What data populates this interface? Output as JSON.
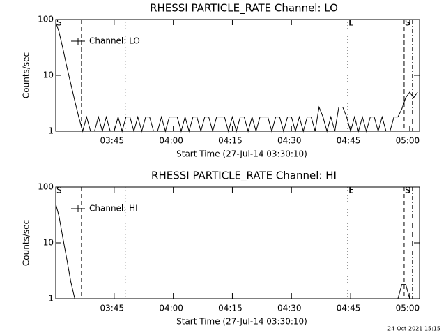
{
  "chart_data": [
    {
      "type": "line",
      "title": "RHESSI PARTICLE_RATE Channel: LO",
      "xlabel": "Start Time (27-Jul-14 03:30:10)",
      "ylabel": "Counts/sec",
      "xlim": [
        0.17,
        92.5
      ],
      "ylim": [
        1,
        100
      ],
      "log_y": true,
      "xticks": [
        {
          "value": 15,
          "label": "03:45"
        },
        {
          "value": 30,
          "label": "04:00"
        },
        {
          "value": 45,
          "label": "04:15"
        },
        {
          "value": 60,
          "label": "04:30"
        },
        {
          "value": 75,
          "label": "04:45"
        },
        {
          "value": 90,
          "label": "05:00"
        }
      ],
      "yticks": [
        1,
        10,
        100
      ],
      "legend": "upper left",
      "event_lines": [
        {
          "x": 6.7,
          "style": "dashed"
        },
        {
          "x": 17.8,
          "style": "dotted"
        },
        {
          "x": 74.3,
          "style": "dotted"
        },
        {
          "x": 88.6,
          "style": "dashed"
        },
        {
          "x": 90.7,
          "style": "dashdot"
        }
      ],
      "event_labels": [
        {
          "text": "S",
          "x": 0.17
        },
        {
          "text": "E",
          "x": 74.3
        },
        {
          "text": "S",
          "x": 88.6
        }
      ],
      "x": [
        0.17,
        1,
        2,
        3,
        4,
        5,
        6,
        7,
        8,
        9,
        10,
        11,
        12,
        13,
        14,
        15,
        16,
        17,
        18,
        19,
        20,
        21,
        22,
        23,
        24,
        25,
        26,
        27,
        28,
        29,
        30,
        31,
        32,
        33,
        34,
        35,
        36,
        37,
        38,
        39,
        40,
        41,
        42,
        43,
        44,
        45,
        46,
        47,
        48,
        49,
        50,
        51,
        52,
        53,
        54,
        55,
        56,
        57,
        58,
        59,
        60,
        61,
        62,
        63,
        64,
        65,
        66,
        67,
        68,
        69,
        70,
        71,
        72,
        73,
        74,
        75,
        76,
        77,
        78,
        79,
        80,
        81,
        82,
        83,
        84,
        85,
        86,
        87,
        88,
        89,
        90,
        91,
        92
      ],
      "series": [
        {
          "name": "Channel: LO",
          "color": "#000000",
          "values": [
            90,
            60,
            30,
            14,
            7,
            3.5,
            1.8,
            1,
            1.8,
            1,
            1,
            1.8,
            1,
            1.8,
            1,
            1,
            1.8,
            1,
            1.8,
            1.8,
            1,
            1.8,
            1,
            1.8,
            1.8,
            1,
            1,
            1.8,
            1,
            1.8,
            1.8,
            1.8,
            1,
            1.8,
            1,
            1.8,
            1.8,
            1,
            1.8,
            1.8,
            1,
            1.8,
            1.8,
            1.8,
            1,
            1.8,
            1,
            1.8,
            1.8,
            1,
            1.8,
            1,
            1.8,
            1.8,
            1.8,
            1,
            1.8,
            1.8,
            1,
            1.8,
            1.8,
            1,
            1.8,
            1,
            1.8,
            1.8,
            1,
            2.7,
            1.8,
            1,
            1.8,
            1,
            2.7,
            2.7,
            1.8,
            1,
            1.8,
            1,
            1.8,
            1,
            1.8,
            1.8,
            1,
            1.8,
            1,
            1,
            1.8,
            1.8,
            2.5,
            4,
            5,
            4,
            5
          ]
        }
      ]
    },
    {
      "type": "line",
      "title": "RHESSI PARTICLE_RATE Channel: HI",
      "xlabel": "Start Time (27-Jul-14 03:30:10)",
      "ylabel": "Counts/sec",
      "xlim": [
        0.17,
        92.5
      ],
      "ylim": [
        1,
        100
      ],
      "log_y": true,
      "xticks": [
        {
          "value": 15,
          "label": "03:45"
        },
        {
          "value": 30,
          "label": "04:00"
        },
        {
          "value": 45,
          "label": "04:15"
        },
        {
          "value": 60,
          "label": "04:30"
        },
        {
          "value": 75,
          "label": "04:45"
        },
        {
          "value": 90,
          "label": "05:00"
        }
      ],
      "yticks": [
        1,
        10,
        100
      ],
      "legend": "upper left",
      "event_lines": [
        {
          "x": 6.7,
          "style": "dashed"
        },
        {
          "x": 17.8,
          "style": "dotted"
        },
        {
          "x": 74.3,
          "style": "dotted"
        },
        {
          "x": 88.6,
          "style": "dashed"
        },
        {
          "x": 90.7,
          "style": "dashdot"
        }
      ],
      "event_labels": [
        {
          "text": "S",
          "x": 0.17
        },
        {
          "text": "E",
          "x": 74.3
        },
        {
          "text": "S",
          "x": 88.6
        }
      ],
      "x": [
        0.17,
        1,
        2,
        3,
        4,
        5,
        6,
        7,
        8,
        9,
        10,
        11,
        12,
        13,
        14,
        15,
        16,
        17,
        18,
        19,
        20,
        21,
        22,
        23,
        24,
        25,
        26,
        27,
        28,
        29,
        30,
        31,
        32,
        33,
        34,
        35,
        36,
        37,
        38,
        39,
        40,
        41,
        42,
        43,
        44,
        45,
        46,
        47,
        48,
        49,
        50,
        51,
        52,
        53,
        54,
        55,
        56,
        57,
        58,
        59,
        60,
        61,
        62,
        63,
        64,
        65,
        66,
        67,
        68,
        69,
        70,
        71,
        72,
        73,
        74,
        75,
        76,
        77,
        78,
        79,
        80,
        81,
        82,
        83,
        84,
        85,
        86,
        87,
        88,
        89,
        90,
        91,
        92
      ],
      "series": [
        {
          "name": "Channel: HI",
          "color": "#000000",
          "values": [
            50,
            30,
            12,
            5,
            2,
            1,
            1,
            1,
            1,
            1,
            1,
            1,
            1,
            1,
            1,
            1,
            1,
            1,
            1,
            1,
            1,
            1,
            1,
            1,
            1,
            1,
            1,
            1,
            1,
            1,
            1,
            1,
            1,
            1,
            1,
            1,
            1,
            1,
            1,
            1,
            1,
            1,
            1,
            1,
            1,
            1,
            1,
            1,
            1,
            1,
            1,
            1,
            1,
            1,
            1,
            1,
            1,
            1,
            1,
            1,
            1,
            1,
            1,
            1,
            1,
            1,
            1,
            1,
            1,
            1,
            1,
            1,
            1,
            1,
            1,
            1,
            1,
            1,
            1,
            1,
            1,
            1,
            1,
            1,
            1,
            1,
            1,
            1,
            1.8,
            1.8,
            1,
            1,
            1
          ]
        }
      ]
    }
  ],
  "footer": "24-Oct-2021 15:15"
}
